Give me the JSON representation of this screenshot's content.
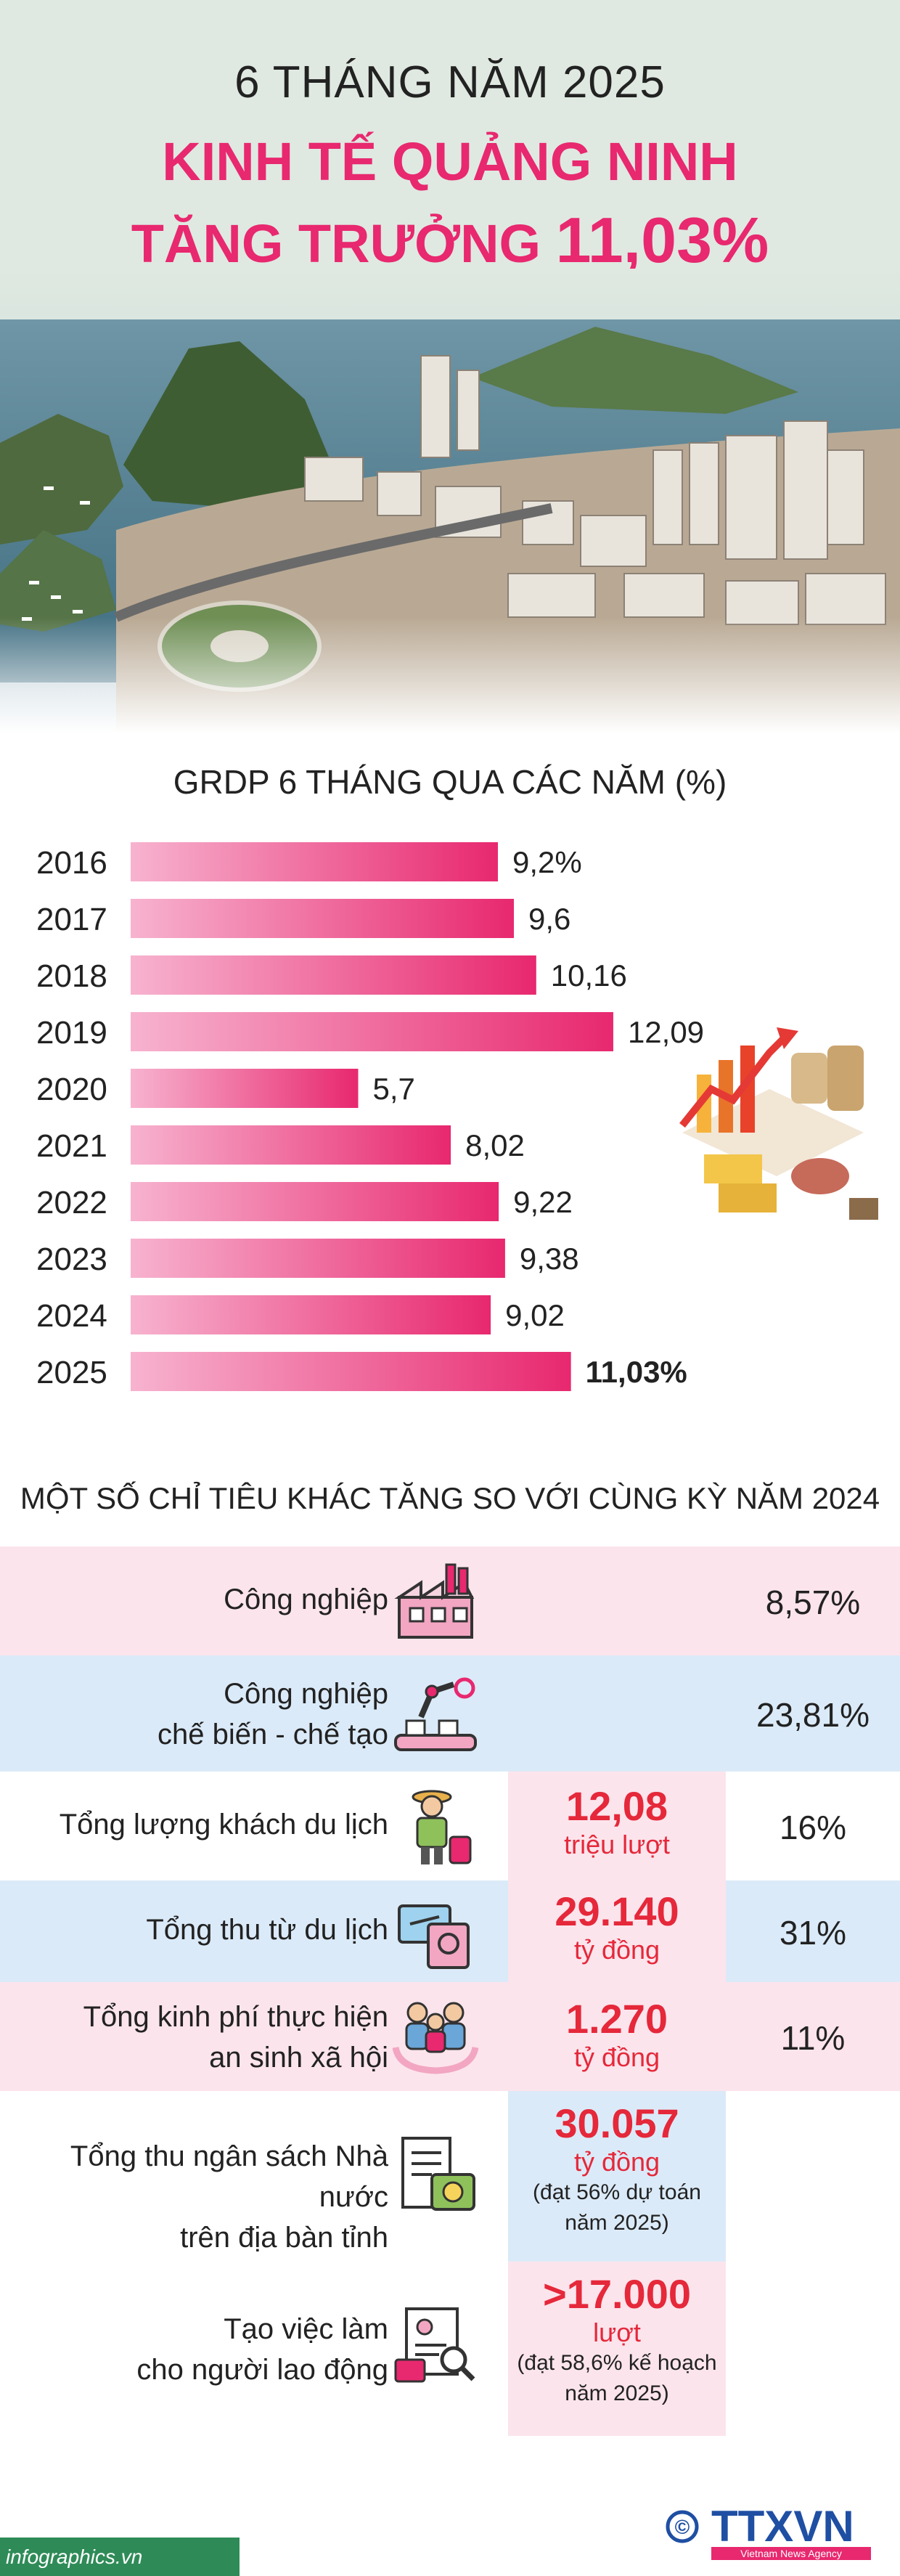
{
  "header": {
    "line1": "6 THÁNG NĂM 2025",
    "line2": "KINH TẾ QUẢNG NINH",
    "line3_text": "TĂNG TRƯỞNG ",
    "line3_value": "11,03%"
  },
  "chart_data": {
    "type": "bar",
    "title": "GRDP 6 THÁNG QUA CÁC NĂM (%)",
    "categories": [
      "2016",
      "2017",
      "2018",
      "2019",
      "2020",
      "2021",
      "2022",
      "2023",
      "2024",
      "2025"
    ],
    "values": [
      9.2,
      9.6,
      10.16,
      12.09,
      5.7,
      8.02,
      9.22,
      9.38,
      9.02,
      11.03
    ],
    "labels": [
      "9,2%",
      "9,6",
      "10,16",
      "12,09",
      "5,7",
      "8,02",
      "9,22",
      "9,38",
      "9,02",
      "11,03%"
    ],
    "highlight_last": true,
    "xlim": [
      0,
      13
    ]
  },
  "section2": {
    "title": "MỘT SỐ CHỈ TIÊU KHÁC TĂNG SO VỚI CÙNG KỲ NĂM 2024",
    "rows": [
      {
        "label": [
          "Công nghiệp"
        ],
        "icon": "factory-icon",
        "num": "",
        "unit": "",
        "note": [],
        "pct": "8,57%"
      },
      {
        "label": [
          "Công nghiệp",
          "chế biến - chế tạo"
        ],
        "icon": "robot-arm-icon",
        "num": "",
        "unit": "",
        "note": [],
        "pct": "23,81%"
      },
      {
        "label": [
          "Tổng lượng khách du lịch"
        ],
        "icon": "tourist-icon",
        "num": "12,08",
        "unit": "triệu lượt",
        "note": [],
        "pct": "16%"
      },
      {
        "label": [
          "Tổng thu từ du lịch"
        ],
        "icon": "ticket-passport-icon",
        "num": "29.140",
        "unit": "tỷ đồng",
        "note": [],
        "pct": "31%"
      },
      {
        "label": [
          "Tổng kinh phí thực hiện",
          "an sinh xã hội"
        ],
        "icon": "people-hands-icon",
        "num": "1.270",
        "unit": "tỷ đồng",
        "note": [],
        "pct": "11%"
      },
      {
        "label": [
          "Tổng thu ngân sách Nhà nước",
          "trên địa bàn tỉnh"
        ],
        "icon": "budget-document-icon",
        "num": "30.057",
        "unit": "tỷ đồng",
        "note": [
          "(đạt 56% dự toán",
          "năm 2025)"
        ],
        "pct": ""
      },
      {
        "label": [
          "Tạo việc làm",
          "cho người lao động"
        ],
        "icon": "job-search-icon",
        "num": ">17.000",
        "unit": "lượt",
        "note": [
          "(đạt 58,6% kế hoạch",
          "năm 2025)"
        ],
        "pct": ""
      }
    ]
  },
  "footer": {
    "source": "infographics.vn",
    "logo_text": "TTXVN",
    "logo_sub": "Vietnam News Agency",
    "copyright": "©"
  },
  "colors": {
    "accent_pink": "#e8286f",
    "bar_gradient_start": "#f7b3cf",
    "bar_gradient_end": "#e8286f",
    "red_value": "#e5283a",
    "row_pink": "#fce4ec",
    "row_blue": "#dbeaf8",
    "header_bg": "#dfe9e1"
  }
}
